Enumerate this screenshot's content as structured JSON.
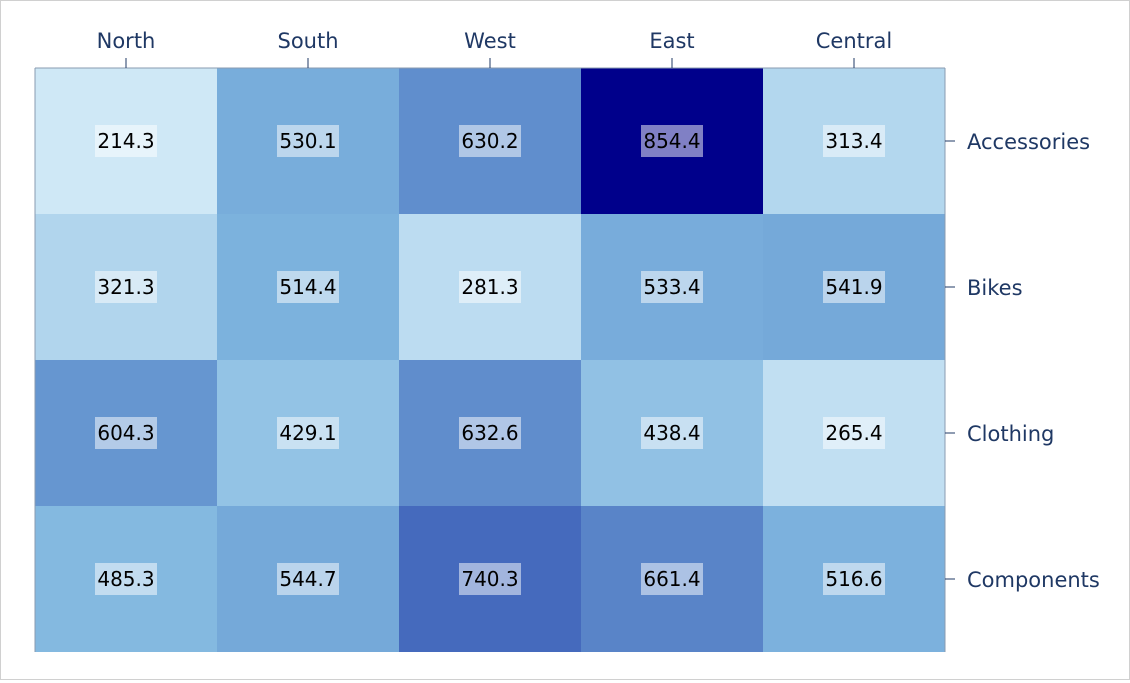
{
  "chart_data": {
    "type": "heatmap",
    "columns": [
      "North",
      "South",
      "West",
      "East",
      "Central"
    ],
    "rows": [
      "Accessories",
      "Bikes",
      "Clothing",
      "Components"
    ],
    "values": [
      [
        214.3,
        530.1,
        630.2,
        854.4,
        313.4
      ],
      [
        321.3,
        514.4,
        281.3,
        533.4,
        541.9
      ],
      [
        604.3,
        429.1,
        632.6,
        438.4,
        265.4
      ],
      [
        485.3,
        544.7,
        740.3,
        661.4,
        516.6
      ]
    ],
    "color_min": 214.3,
    "color_max": 854.4,
    "colors": {
      "low": "#cfe8f6",
      "mid": "#7fb6df",
      "high_mid": "#466bbd",
      "max": "#00008b",
      "axis": "#1f3864",
      "label_bg": "#ffffff",
      "value_text": "#000000"
    },
    "title": "",
    "xlabel": "",
    "ylabel": "",
    "grid": false,
    "legend": "none"
  }
}
